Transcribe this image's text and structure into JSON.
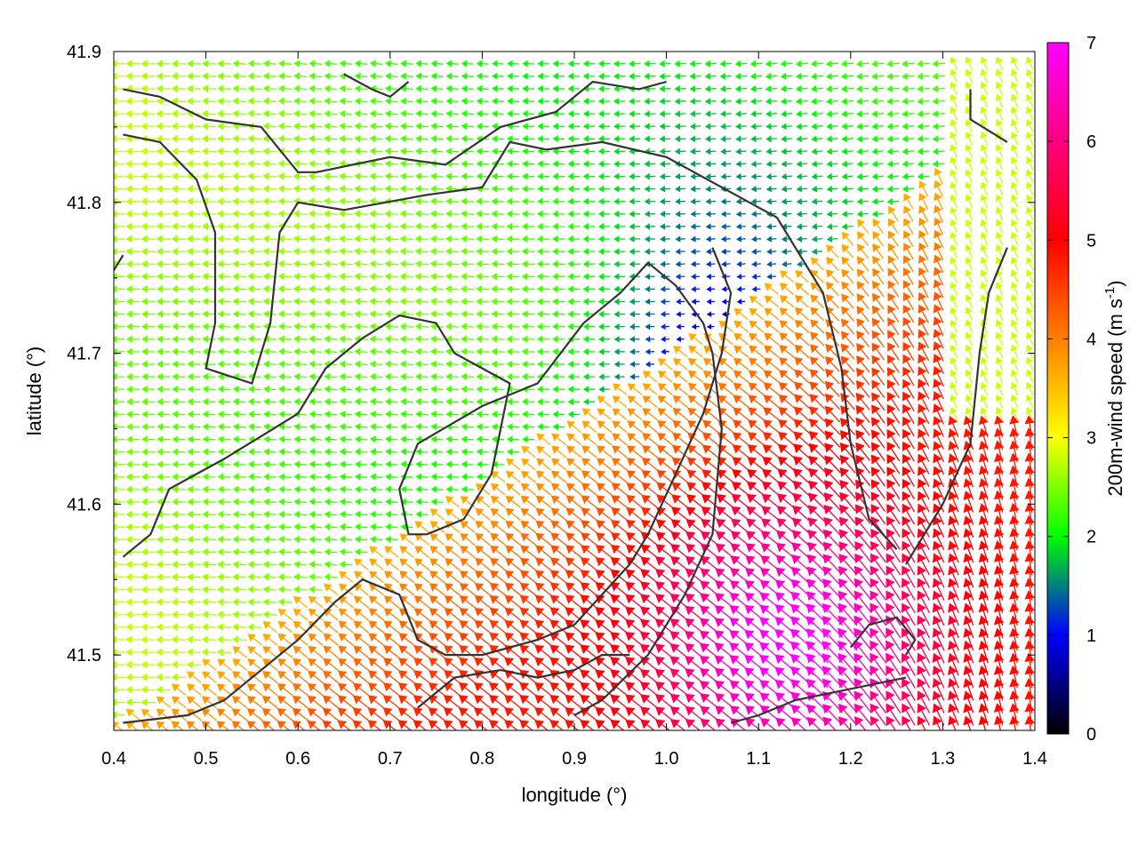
{
  "chart_data": {
    "type": "vector-field",
    "xlabel": "longitude (°)",
    "ylabel": "latitude (°)",
    "xlim": [
      0.4,
      1.4
    ],
    "ylim": [
      41.45,
      41.9
    ],
    "xticks": [
      "0.4",
      "0.5",
      "0.6",
      "0.7",
      "0.8",
      "0.9",
      "1.0",
      "1.1",
      "1.2",
      "1.3",
      "1.4"
    ],
    "yticks": [
      "41.5",
      "41.6",
      "41.7",
      "41.8",
      "41.9"
    ],
    "x_tick_values": [
      0.4,
      0.5,
      0.6,
      0.7,
      0.8,
      0.9,
      1.0,
      1.1,
      1.2,
      1.3,
      1.4
    ],
    "y_tick_values": [
      41.5,
      41.6,
      41.7,
      41.8,
      41.9
    ],
    "grid": true,
    "colorbar": {
      "label_main": "200m-wind speed (m s",
      "label_sup": "-1",
      "label_end": ")",
      "min": 0,
      "max": 7,
      "ticks": [
        "0",
        "1",
        "2",
        "3",
        "4",
        "5",
        "6",
        "7"
      ],
      "tick_values": [
        0,
        1,
        2,
        3,
        4,
        5,
        6,
        7
      ],
      "colors": [
        "#000000",
        "#0000ff",
        "#00ff00",
        "#ffff00",
        "#ff8000",
        "#ff0000",
        "#ff00ff"
      ]
    },
    "field_description_points": {
      "speed_high_center": [
        1.14,
        41.52,
        6.6
      ],
      "easterly_wind_region_speed": 2.5
    },
    "contours": [
      [
        [
          0.41,
          41.875
        ],
        [
          0.45,
          41.87
        ],
        [
          0.5,
          41.855
        ],
        [
          0.56,
          41.85
        ],
        [
          0.6,
          41.82
        ],
        [
          0.62,
          41.82
        ],
        [
          0.7,
          41.83
        ],
        [
          0.76,
          41.825
        ],
        [
          0.82,
          41.85
        ],
        [
          0.88,
          41.86
        ],
        [
          0.92,
          41.88
        ],
        [
          0.97,
          41.875
        ],
        [
          1.0,
          41.88
        ]
      ],
      [
        [
          0.41,
          41.845
        ],
        [
          0.45,
          41.84
        ],
        [
          0.49,
          41.815
        ],
        [
          0.51,
          41.78
        ],
        [
          0.51,
          41.72
        ],
        [
          0.5,
          41.69
        ],
        [
          0.55,
          41.68
        ],
        [
          0.57,
          41.72
        ],
        [
          0.58,
          41.78
        ],
        [
          0.6,
          41.8
        ],
        [
          0.65,
          41.795
        ],
        [
          0.74,
          41.805
        ],
        [
          0.8,
          41.81
        ],
        [
          0.83,
          41.84
        ],
        [
          0.87,
          41.835
        ],
        [
          0.93,
          41.84
        ],
        [
          1.0,
          41.83
        ],
        [
          1.06,
          41.81
        ],
        [
          1.12,
          41.79
        ],
        [
          1.15,
          41.76
        ],
        [
          1.17,
          41.74
        ],
        [
          1.19,
          41.69
        ],
        [
          1.2,
          41.64
        ],
        [
          1.22,
          41.59
        ],
        [
          1.25,
          41.57
        ]
      ],
      [
        [
          0.41,
          41.565
        ],
        [
          0.44,
          41.58
        ],
        [
          0.46,
          41.61
        ],
        [
          0.49,
          41.62
        ],
        [
          0.52,
          41.63
        ],
        [
          0.56,
          41.645
        ],
        [
          0.6,
          41.66
        ],
        [
          0.63,
          41.69
        ],
        [
          0.67,
          41.71
        ],
        [
          0.71,
          41.725
        ],
        [
          0.75,
          41.72
        ],
        [
          0.77,
          41.7
        ],
        [
          0.83,
          41.68
        ],
        [
          0.81,
          41.62
        ],
        [
          0.78,
          41.59
        ],
        [
          0.74,
          41.58
        ],
        [
          0.72,
          41.58
        ],
        [
          0.71,
          41.61
        ],
        [
          0.73,
          41.64
        ],
        [
          0.8,
          41.665
        ],
        [
          0.86,
          41.68
        ],
        [
          0.91,
          41.72
        ],
        [
          0.95,
          41.74
        ],
        [
          0.98,
          41.76
        ],
        [
          1.01,
          41.745
        ],
        [
          1.04,
          41.72
        ],
        [
          1.05,
          41.7
        ],
        [
          1.06,
          41.65
        ],
        [
          1.05,
          41.58
        ],
        [
          1.02,
          41.54
        ],
        [
          0.98,
          41.5
        ],
        [
          0.93,
          41.47
        ],
        [
          0.9,
          41.46
        ]
      ],
      [
        [
          0.41,
          41.455
        ],
        [
          0.48,
          41.46
        ],
        [
          0.52,
          41.47
        ],
        [
          0.56,
          41.49
        ],
        [
          0.6,
          41.51
        ],
        [
          0.64,
          41.535
        ],
        [
          0.67,
          41.55
        ],
        [
          0.71,
          41.54
        ],
        [
          0.73,
          41.51
        ],
        [
          0.76,
          41.5
        ],
        [
          0.8,
          41.5
        ],
        [
          0.86,
          41.51
        ],
        [
          0.9,
          41.52
        ],
        [
          0.93,
          41.54
        ],
        [
          0.96,
          41.56
        ],
        [
          0.98,
          41.58
        ],
        [
          1.01,
          41.62
        ],
        [
          1.04,
          41.66
        ],
        [
          1.06,
          41.7
        ],
        [
          1.07,
          41.74
        ],
        [
          1.05,
          41.77
        ]
      ],
      [
        [
          0.73,
          41.465
        ],
        [
          0.77,
          41.485
        ],
        [
          0.82,
          41.49
        ],
        [
          0.86,
          41.485
        ],
        [
          0.9,
          41.49
        ],
        [
          0.93,
          41.5
        ],
        [
          0.96,
          41.5
        ]
      ],
      [
        [
          1.07,
          41.455
        ],
        [
          1.1,
          41.46
        ],
        [
          1.14,
          41.47
        ],
        [
          1.18,
          41.475
        ],
        [
          1.22,
          41.48
        ],
        [
          1.26,
          41.485
        ]
      ],
      [
        [
          1.2,
          41.505
        ],
        [
          1.22,
          41.52
        ],
        [
          1.25,
          41.525
        ],
        [
          1.27,
          41.51
        ],
        [
          1.26,
          41.5
        ]
      ],
      [
        [
          1.26,
          41.56
        ],
        [
          1.3,
          41.6
        ],
        [
          1.33,
          41.64
        ],
        [
          1.34,
          41.7
        ],
        [
          1.35,
          41.74
        ],
        [
          1.37,
          41.77
        ]
      ],
      [
        [
          0.65,
          41.885
        ],
        [
          0.68,
          41.875
        ],
        [
          0.7,
          41.87
        ],
        [
          0.72,
          41.88
        ]
      ],
      [
        [
          0.4,
          41.755
        ],
        [
          0.41,
          41.765
        ]
      ],
      [
        [
          1.33,
          41.875
        ],
        [
          1.33,
          41.855
        ],
        [
          1.37,
          41.84
        ]
      ]
    ]
  }
}
